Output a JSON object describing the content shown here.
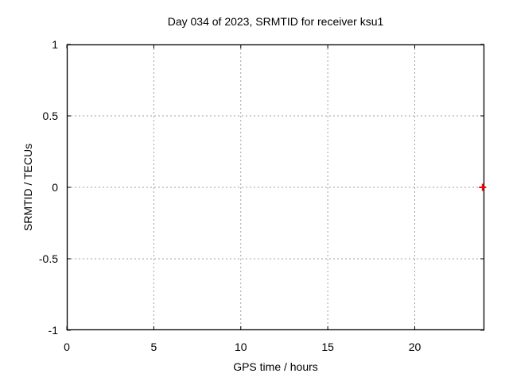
{
  "chart_data": {
    "type": "scatter",
    "title": "Day 034 of 2023, SRMTID for receiver ksu1",
    "xlabel": "GPS time / hours",
    "ylabel": "SRMTID / TECUs",
    "xlim": [
      0,
      24
    ],
    "ylim": [
      -1,
      1
    ],
    "xticks": {
      "values": [
        0,
        5,
        10,
        15,
        20
      ],
      "labels": [
        "0",
        "5",
        "10",
        "15",
        "20"
      ]
    },
    "yticks": {
      "values": [
        -1,
        -0.5,
        0,
        0.5,
        1
      ],
      "labels": [
        "-1",
        "-0.5",
        "0",
        "0.5",
        "1"
      ]
    },
    "grid": true,
    "grid_style": "dotted",
    "legend": "none",
    "series": [
      {
        "name": "",
        "marker": "plus",
        "color": "#ff0000",
        "points": [
          {
            "x": 23.9,
            "y": 0.0
          }
        ]
      }
    ],
    "colors": {
      "background": "#ffffff",
      "border": "#000000",
      "grid": "#a0a0a0",
      "text": "#000000"
    }
  }
}
